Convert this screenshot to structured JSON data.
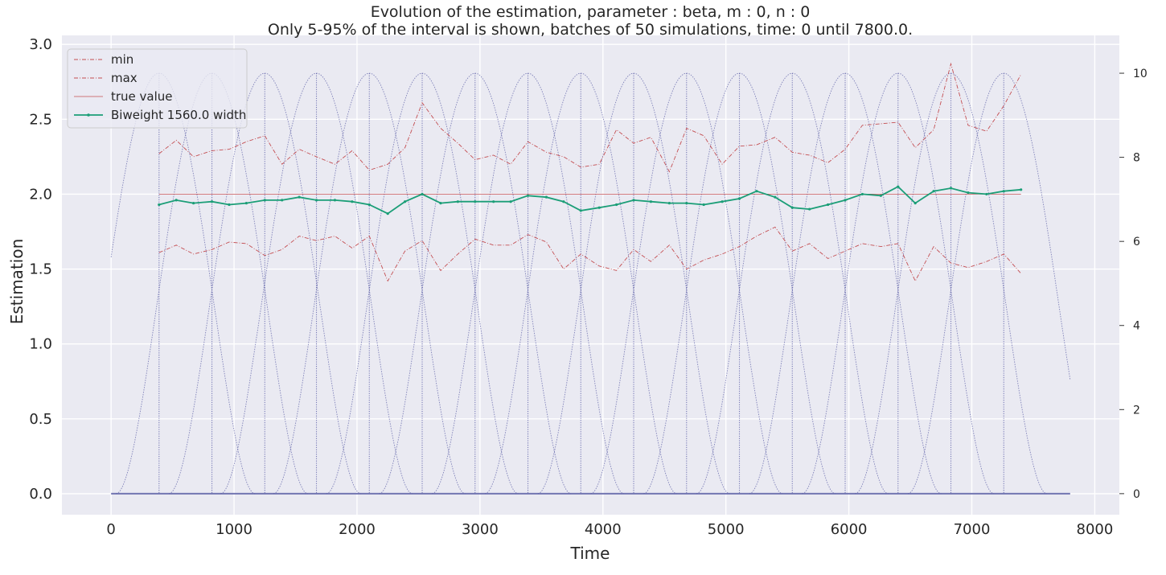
{
  "chart_data": {
    "type": "line",
    "title": "Evolution of the estimation, parameter : beta, m : 0, n : 0",
    "subtitle": "Only 5-95% of the interval is shown, batches of 50 simulations, time: 0 until 7800.0.",
    "xlabel": "Time",
    "ylabel": "Estimation",
    "xlim": [
      -400,
      8200
    ],
    "ylim": [
      -0.14,
      3.06
    ],
    "y2lim": [
      -0.5,
      10.9
    ],
    "x_ticks": [
      0,
      1000,
      2000,
      3000,
      4000,
      5000,
      6000,
      7000,
      8000
    ],
    "x_tick_labels": [
      "0",
      "1000",
      "2000",
      "3000",
      "4000",
      "5000",
      "6000",
      "7000",
      "8000"
    ],
    "y_ticks": [
      0.0,
      0.5,
      1.0,
      1.5,
      2.0,
      2.5,
      3.0
    ],
    "y_tick_labels": [
      "0.0",
      "0.5",
      "1.0",
      "1.5",
      "2.0",
      "2.5",
      "3.0"
    ],
    "y2_ticks": [
      0,
      2,
      4,
      6,
      8,
      10
    ],
    "y2_tick_labels": [
      "0",
      "2",
      "4",
      "6",
      "8",
      "10"
    ],
    "grid": true,
    "legend_placement": "upper-left",
    "x": [
      390,
      530,
      670,
      820,
      960,
      1100,
      1250,
      1390,
      1530,
      1670,
      1820,
      1960,
      2100,
      2250,
      2390,
      2530,
      2680,
      2820,
      2960,
      3110,
      3250,
      3390,
      3540,
      3680,
      3820,
      3970,
      4110,
      4250,
      4390,
      4540,
      4680,
      4820,
      4970,
      5110,
      5250,
      5400,
      5540,
      5680,
      5830,
      5970,
      6110,
      6260,
      6400,
      6540,
      6690,
      6830,
      6970,
      7120,
      7260,
      7400
    ],
    "series": [
      {
        "name": "min",
        "style": "dashdot",
        "color": "#c44e52",
        "values": [
          1.61,
          1.66,
          1.6,
          1.63,
          1.68,
          1.67,
          1.59,
          1.63,
          1.72,
          1.69,
          1.72,
          1.64,
          1.72,
          1.42,
          1.62,
          1.69,
          1.49,
          1.6,
          1.7,
          1.66,
          1.66,
          1.73,
          1.68,
          1.5,
          1.6,
          1.52,
          1.49,
          1.63,
          1.55,
          1.66,
          1.5,
          1.56,
          1.6,
          1.65,
          1.72,
          1.78,
          1.62,
          1.67,
          1.57,
          1.62,
          1.67,
          1.65,
          1.67,
          1.42,
          1.65,
          1.54,
          1.51,
          1.55,
          1.6,
          1.47
        ]
      },
      {
        "name": "max",
        "style": "dashdot",
        "color": "#c44e52",
        "values": [
          2.27,
          2.36,
          2.25,
          2.29,
          2.3,
          2.35,
          2.39,
          2.2,
          2.3,
          2.25,
          2.2,
          2.29,
          2.16,
          2.2,
          2.31,
          2.61,
          2.44,
          2.34,
          2.23,
          2.26,
          2.2,
          2.35,
          2.28,
          2.25,
          2.18,
          2.2,
          2.43,
          2.34,
          2.38,
          2.15,
          2.44,
          2.39,
          2.2,
          2.32,
          2.33,
          2.38,
          2.28,
          2.26,
          2.21,
          2.3,
          2.46,
          2.47,
          2.48,
          2.31,
          2.43,
          2.87,
          2.46,
          2.42,
          2.59,
          2.8
        ]
      },
      {
        "name": "true value",
        "style": "solid-thin",
        "color": "#c44e52",
        "values": [
          2.0,
          2.0,
          2.0,
          2.0,
          2.0,
          2.0,
          2.0,
          2.0,
          2.0,
          2.0,
          2.0,
          2.0,
          2.0,
          2.0,
          2.0,
          2.0,
          2.0,
          2.0,
          2.0,
          2.0,
          2.0,
          2.0,
          2.0,
          2.0,
          2.0,
          2.0,
          2.0,
          2.0,
          2.0,
          2.0,
          2.0,
          2.0,
          2.0,
          2.0,
          2.0,
          2.0,
          2.0,
          2.0,
          2.0,
          2.0,
          2.0,
          2.0,
          2.0,
          2.0,
          2.0,
          2.0,
          2.0,
          2.0,
          2.0,
          2.0
        ]
      },
      {
        "name": "Biweight 1560.0 width",
        "style": "solid-marker",
        "color": "#1b9e77",
        "values": [
          1.93,
          1.96,
          1.94,
          1.95,
          1.93,
          1.94,
          1.96,
          1.96,
          1.98,
          1.96,
          1.96,
          1.95,
          1.93,
          1.87,
          1.95,
          2.0,
          1.94,
          1.95,
          1.95,
          1.95,
          1.95,
          1.99,
          1.98,
          1.95,
          1.89,
          1.91,
          1.93,
          1.96,
          1.95,
          1.94,
          1.94,
          1.93,
          1.95,
          1.97,
          2.02,
          1.98,
          1.91,
          1.9,
          1.93,
          1.96,
          2.0,
          1.99,
          2.05,
          1.94,
          2.02,
          2.04,
          2.01,
          2.0,
          2.02,
          2.03
        ]
      }
    ],
    "kernels": {
      "axis": "right",
      "color": "#5b5ea6",
      "width": 1560.0,
      "peak": 10.0,
      "centers": [
        390,
        820,
        1250,
        1670,
        2100,
        2530,
        2960,
        3390,
        3820,
        4250,
        4680,
        5110,
        5540,
        5970,
        6400,
        6830,
        7260
      ],
      "range": [
        0,
        7800
      ],
      "baseline_value": 0
    },
    "vertical_markers": {
      "style": "dotted",
      "color": "#5b5ea6",
      "x": [
        390,
        820,
        1250,
        1670,
        2100,
        2530,
        2960,
        3390,
        3820,
        4250,
        4680,
        5110,
        5540,
        5970,
        6400,
        6830,
        7260
      ]
    },
    "colors": {
      "plot_background": "#eaeaf2",
      "grid": "#ffffff",
      "min_max_true": "#c44e52",
      "biweight": "#1b9e77",
      "kernels": "#5b5ea6"
    }
  }
}
